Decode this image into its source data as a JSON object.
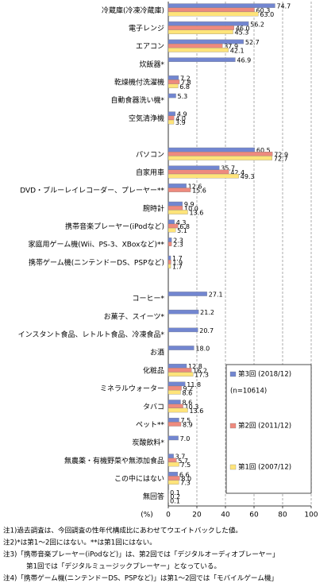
{
  "chart_data": {
    "type": "hbar",
    "categories": [
      "冷蔵庫(冷凍冷蔵庫)",
      "電子レンジ",
      "エアコン",
      "炊飯器*",
      "乾燥機付洗濯機",
      "自動食器洗い機*",
      "空気清浄機",
      null,
      "パソコン",
      "自家用車",
      "DVD・ブルーレイレコーダー、プレーヤー**",
      "腕時計",
      "携帯音楽プレーヤー(iPodなど)",
      "家庭用ゲーム機(Wii、PS-3、XBoxなど)**",
      "携帯ゲーム機(ニンテンドーDS、PSPなど)",
      null,
      "コーヒー*",
      "お菓子、スイーツ*",
      "インスタント食品、レトルト食品、冷凍食品*",
      "お酒",
      "化粧品",
      "ミネラルウォーター",
      "タバコ",
      "ペット**",
      "炭酸飲料*",
      "無農薬・有機野菜や無添加食品",
      "この中にはない",
      "無回答"
    ],
    "series": [
      {
        "name": "第3回 (2018/12)",
        "color": "#7286d0",
        "values": [
          74.7,
          56.2,
          52.7,
          46.9,
          7.2,
          5.3,
          4.9,
          null,
          60.5,
          35.7,
          12.6,
          9.9,
          4.3,
          2.3,
          1.7,
          null,
          27.1,
          21.2,
          20.7,
          18.0,
          12.8,
          11.8,
          8.6,
          7.5,
          7.0,
          3.7,
          6.6,
          0.1
        ],
        "value_labels": [
          "74.7",
          "56.2",
          "52.7",
          "46.9",
          "7.2",
          "5.3",
          "4.9",
          null,
          "60.5",
          "35.7",
          "12.6",
          "9.9",
          "4.3",
          "2.3",
          "1.7",
          null,
          "27.1",
          "21.2",
          "20.7",
          "18.0",
          "12.8",
          "11.8",
          "8.6",
          "7.5",
          "7.0",
          "3.7",
          "6.6",
          "0.1"
        ]
      },
      {
        "name": "第2回 (2011/12)",
        "color": "#ee8a7e",
        "values": [
          60.3,
          46.0,
          37.9,
          null,
          7.8,
          null,
          4.0,
          null,
          72.9,
          42.4,
          15.6,
          10.0,
          6.8,
          2.3,
          1.9,
          null,
          null,
          null,
          null,
          null,
          16.2,
          9.2,
          10.3,
          8.9,
          null,
          5.7,
          8.0,
          0.2
        ],
        "value_labels": [
          "60.3",
          "46.0",
          "37.9",
          null,
          "7.8",
          null,
          "4.0",
          null,
          "72.9",
          "42.4",
          "15.6",
          "10.0",
          "6.8",
          "2.3",
          "1.9",
          null,
          null,
          null,
          null,
          null,
          "16.2",
          "9.2",
          "10.3",
          "8.9",
          null,
          "5.7",
          "8.0",
          "0.2"
        ]
      },
      {
        "name": "第1回 (2007/12)",
        "color": "#ffe47a",
        "values": [
          63.0,
          45.3,
          42.1,
          null,
          6.8,
          null,
          3.9,
          null,
          72.7,
          49.3,
          null,
          13.6,
          5.1,
          null,
          1.7,
          null,
          null,
          null,
          null,
          null,
          17.3,
          8.6,
          13.6,
          null,
          null,
          7.5,
          7.3,
          0.1
        ],
        "value_labels": [
          "63.0",
          "45.3",
          "42.1",
          null,
          "6.8",
          null,
          "3.9",
          null,
          "72.7",
          "49.3",
          null,
          "13.6",
          "5.1",
          null,
          "1.7",
          null,
          null,
          null,
          null,
          null,
          "17.3",
          "8.6",
          "13.6",
          null,
          null,
          "7.5",
          "7.3",
          "0.1"
        ]
      }
    ],
    "legend_note": "(n=10614)",
    "x_label": "(%)",
    "xlim": [
      0,
      100
    ],
    "xticks": [
      0,
      20,
      40,
      60,
      80,
      100
    ],
    "grid": true,
    "notes": [
      "注1)過去調査は、今回調査の性年代構成比にあわせてウエイトバックした値。",
      "注2)*は第1～2回にはない。**は第1回にはない。",
      "注3)「携帯音楽プレーヤー(iPodなど)」は、第2回では「デジタルオーディオプレーヤー」",
      "第1回では「デジタルミュージックプレーヤー」となっている。",
      "注4)「携帯ゲーム機(ニンテンドーDS、PSPなど)」は第1～2回では「モバイルゲーム機」"
    ]
  }
}
